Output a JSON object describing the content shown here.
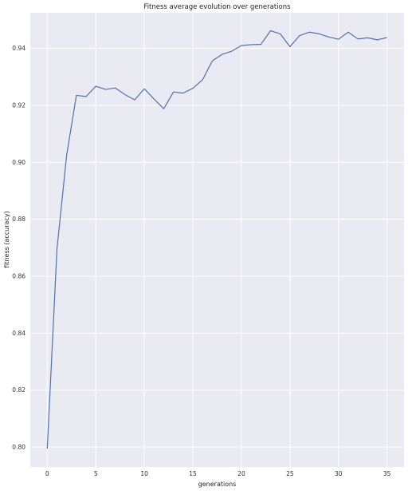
{
  "chart_data": {
    "type": "line",
    "title": "Fitness average evolution over generations",
    "xlabel": "generations",
    "ylabel": "fitness (accuracy)",
    "xlim": [
      -1.75,
      36.75
    ],
    "ylim": [
      0.793,
      0.9525
    ],
    "xticks": [
      0,
      5,
      10,
      15,
      20,
      25,
      30,
      35
    ],
    "yticks": [
      0.8,
      0.82,
      0.84,
      0.86,
      0.88,
      0.9,
      0.92,
      0.94
    ],
    "grid": true,
    "background": "#eaeaf2",
    "grid_color": "#ffffff",
    "line_color": "#4c72b0",
    "series": [
      {
        "x": [
          0,
          1,
          2,
          3,
          4,
          5,
          6,
          7,
          8,
          9,
          10,
          11,
          12,
          13,
          14,
          15,
          16,
          17,
          18,
          19,
          20,
          21,
          22,
          23,
          24,
          25,
          26,
          27,
          28,
          29,
          30,
          31,
          32,
          33,
          34,
          35
        ],
        "values": [
          0.7995,
          0.8696,
          0.9026,
          0.9235,
          0.9231,
          0.9267,
          0.9256,
          0.9261,
          0.9238,
          0.9219,
          0.9258,
          0.9222,
          0.9188,
          0.9247,
          0.9243,
          0.926,
          0.929,
          0.9356,
          0.9379,
          0.939,
          0.941,
          0.9413,
          0.9414,
          0.9462,
          0.9451,
          0.9406,
          0.9445,
          0.9457,
          0.9451,
          0.944,
          0.9432,
          0.9457,
          0.9433,
          0.9437,
          0.943,
          0.9438
        ]
      }
    ]
  }
}
